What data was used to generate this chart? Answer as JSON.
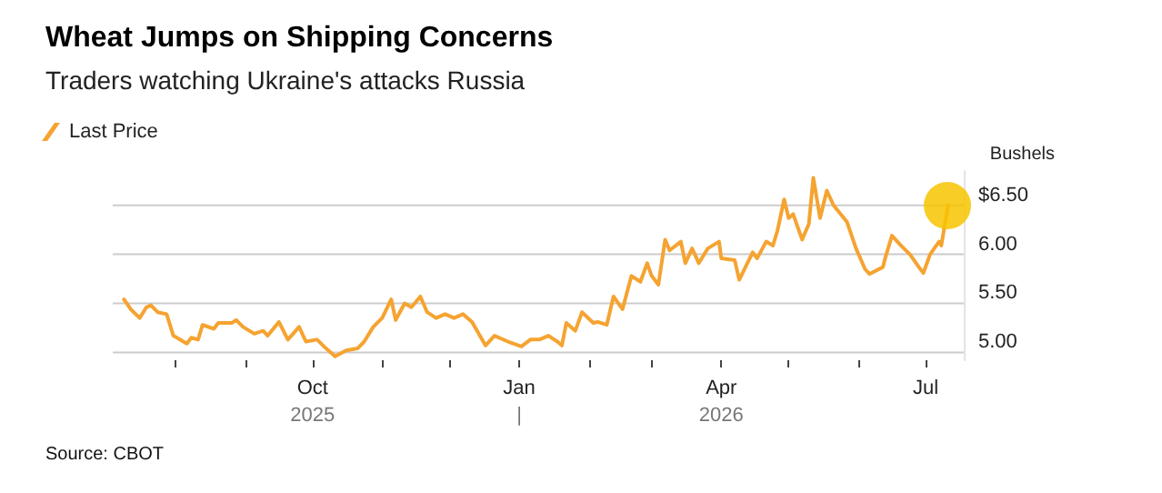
{
  "chart_data": {
    "type": "line",
    "title": "Wheat Jumps on Shipping Concerns",
    "subtitle": "Traders watching Ukraine's attacks Russia",
    "ylabel": "Bushels",
    "annotations": [
      "Source: CBOT"
    ],
    "x": [
      "2025-07-09",
      "2025-07-12",
      "2025-07-16",
      "2025-07-19",
      "2025-07-21",
      "2025-07-24",
      "2025-07-28",
      "2025-07-31",
      "2025-08-06",
      "2025-08-08",
      "2025-08-11",
      "2025-08-13",
      "2025-08-18",
      "2025-08-20",
      "2025-08-26",
      "2025-08-28",
      "2025-08-31",
      "2025-09-05",
      "2025-09-09",
      "2025-09-11",
      "2025-09-16",
      "2025-09-20",
      "2025-09-25",
      "2025-09-28",
      "2025-10-03",
      "2025-10-07",
      "2025-10-11",
      "2025-10-16",
      "2025-10-21",
      "2025-10-24",
      "2025-10-28",
      "2025-11-01",
      "2025-11-05",
      "2025-11-07",
      "2025-11-11",
      "2025-11-14",
      "2025-11-18",
      "2025-11-21",
      "2025-11-25",
      "2025-11-29",
      "2025-12-03",
      "2025-12-07",
      "2025-12-11",
      "2025-12-17",
      "2025-12-21",
      "2025-12-27",
      "2026-01-02",
      "2026-01-06",
      "2026-01-10",
      "2026-01-14",
      "2026-01-18",
      "2026-01-20",
      "2026-01-22",
      "2026-01-26",
      "2026-01-29",
      "2026-02-03",
      "2026-02-05",
      "2026-02-09",
      "2026-02-12",
      "2026-02-16",
      "2026-02-20",
      "2026-02-24",
      "2026-02-27",
      "2026-03-01",
      "2026-03-04",
      "2026-03-07",
      "2026-03-09",
      "2026-03-14",
      "2026-03-16",
      "2026-03-19",
      "2026-03-22",
      "2026-03-26",
      "2026-03-31",
      "2026-04-01",
      "2026-04-07",
      "2026-04-09",
      "2026-04-15",
      "2026-04-17",
      "2026-04-21",
      "2026-04-24",
      "2026-04-26",
      "2026-04-29",
      "2026-05-01",
      "2026-05-03",
      "2026-05-07",
      "2026-05-10",
      "2026-05-12",
      "2026-05-15",
      "2026-05-18",
      "2026-05-21",
      "2026-05-27",
      "2026-05-31",
      "2026-06-04",
      "2026-06-06",
      "2026-06-12",
      "2026-06-13",
      "2026-06-16",
      "2026-06-20",
      "2026-06-24",
      "2026-06-28",
      "2026-06-30",
      "2026-07-03",
      "2026-07-07",
      "2026-07-08",
      "2026-07-11"
    ],
    "series": [
      {
        "name": "Last Price",
        "color": "#f5a331",
        "values": [
          5.54,
          5.44,
          5.35,
          5.46,
          5.48,
          5.41,
          5.39,
          5.17,
          5.09,
          5.15,
          5.13,
          5.28,
          5.24,
          5.3,
          5.3,
          5.33,
          5.26,
          5.19,
          5.22,
          5.17,
          5.31,
          5.13,
          5.26,
          5.11,
          5.13,
          5.04,
          4.96,
          5.02,
          5.04,
          5.11,
          5.26,
          5.35,
          5.54,
          5.33,
          5.5,
          5.46,
          5.57,
          5.41,
          5.35,
          5.39,
          5.35,
          5.39,
          5.31,
          5.07,
          5.17,
          5.11,
          5.06,
          5.13,
          5.13,
          5.17,
          5.11,
          5.07,
          5.3,
          5.22,
          5.41,
          5.3,
          5.31,
          5.28,
          5.57,
          5.44,
          5.78,
          5.72,
          5.91,
          5.78,
          5.69,
          6.15,
          6.04,
          6.13,
          5.91,
          6.06,
          5.91,
          6.06,
          6.13,
          5.96,
          5.94,
          5.74,
          6.02,
          5.96,
          6.13,
          6.09,
          6.24,
          6.56,
          6.37,
          6.41,
          6.15,
          6.31,
          6.78,
          6.37,
          6.65,
          6.5,
          6.33,
          6.06,
          5.85,
          5.8,
          5.87,
          5.96,
          6.19,
          6.09,
          6.0,
          5.87,
          5.81,
          6.0,
          6.13,
          6.09,
          6.5
        ]
      }
    ],
    "xlim": [
      "2025-07-04",
      "2026-07-18"
    ],
    "xticks": [
      {
        "value": "2025-08-01",
        "label": null
      },
      {
        "value": "2025-09-01",
        "label": null
      },
      {
        "value": "2025-10-01",
        "label": "Oct\n2025"
      },
      {
        "value": "2025-11-01",
        "label": null
      },
      {
        "value": "2025-12-01",
        "label": null
      },
      {
        "value": "2026-01-01",
        "label": "Jan\n|"
      },
      {
        "value": "2026-02-01",
        "label": null
      },
      {
        "value": "2026-03-01",
        "label": null
      },
      {
        "value": "2026-04-01",
        "label": "Apr\n2026"
      },
      {
        "value": "2026-05-01",
        "label": null
      },
      {
        "value": "2026-06-01",
        "label": null
      },
      {
        "value": "2026-07-01",
        "label": "Jul"
      }
    ],
    "ylim": [
      4.92,
      6.85
    ],
    "yticks": [
      {
        "value": 5,
        "label": "5.00"
      },
      {
        "value": 5.5,
        "label": "5.50"
      },
      {
        "value": 6,
        "label": "6.00"
      },
      {
        "value": 6.5,
        "label": "$6.50"
      }
    ],
    "grid": "y",
    "legend": "top left",
    "marker": "none",
    "line_style": "solid"
  }
}
